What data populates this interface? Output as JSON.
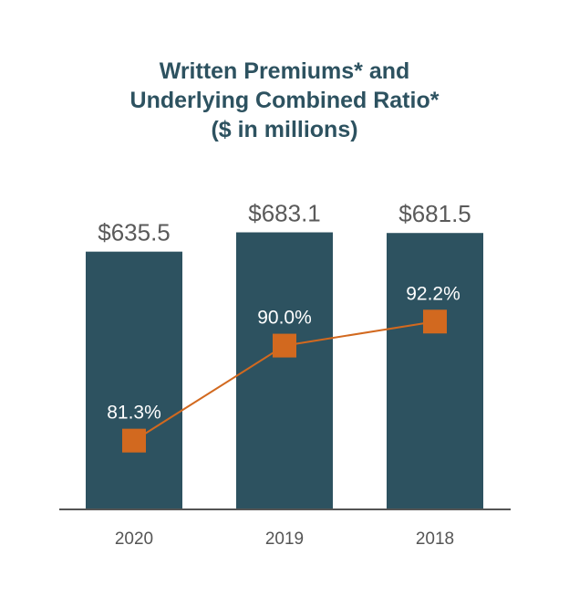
{
  "chart_data": {
    "type": "bar",
    "title_lines": [
      "Written Premiums* and",
      "Underlying Combined Ratio*",
      "($ in millions)"
    ],
    "categories": [
      "2020",
      "2019",
      "2018"
    ],
    "series": [
      {
        "type": "bar",
        "values": [
          635.5,
          683.1,
          681.5
        ],
        "labels": [
          "$635.5",
          "$683.1",
          "$681.5"
        ],
        "color": "#2d5260",
        "axis": "primary"
      },
      {
        "type": "line",
        "values": [
          81.3,
          90.0,
          92.2
        ],
        "labels": [
          "81.3%",
          "90.0%",
          "92.2%"
        ],
        "color": "#d2691f",
        "axis": "secondary"
      }
    ],
    "ylim": [
      0,
      700
    ],
    "y2lim": [
      75,
      101
    ],
    "grid": false,
    "legend": "none"
  }
}
